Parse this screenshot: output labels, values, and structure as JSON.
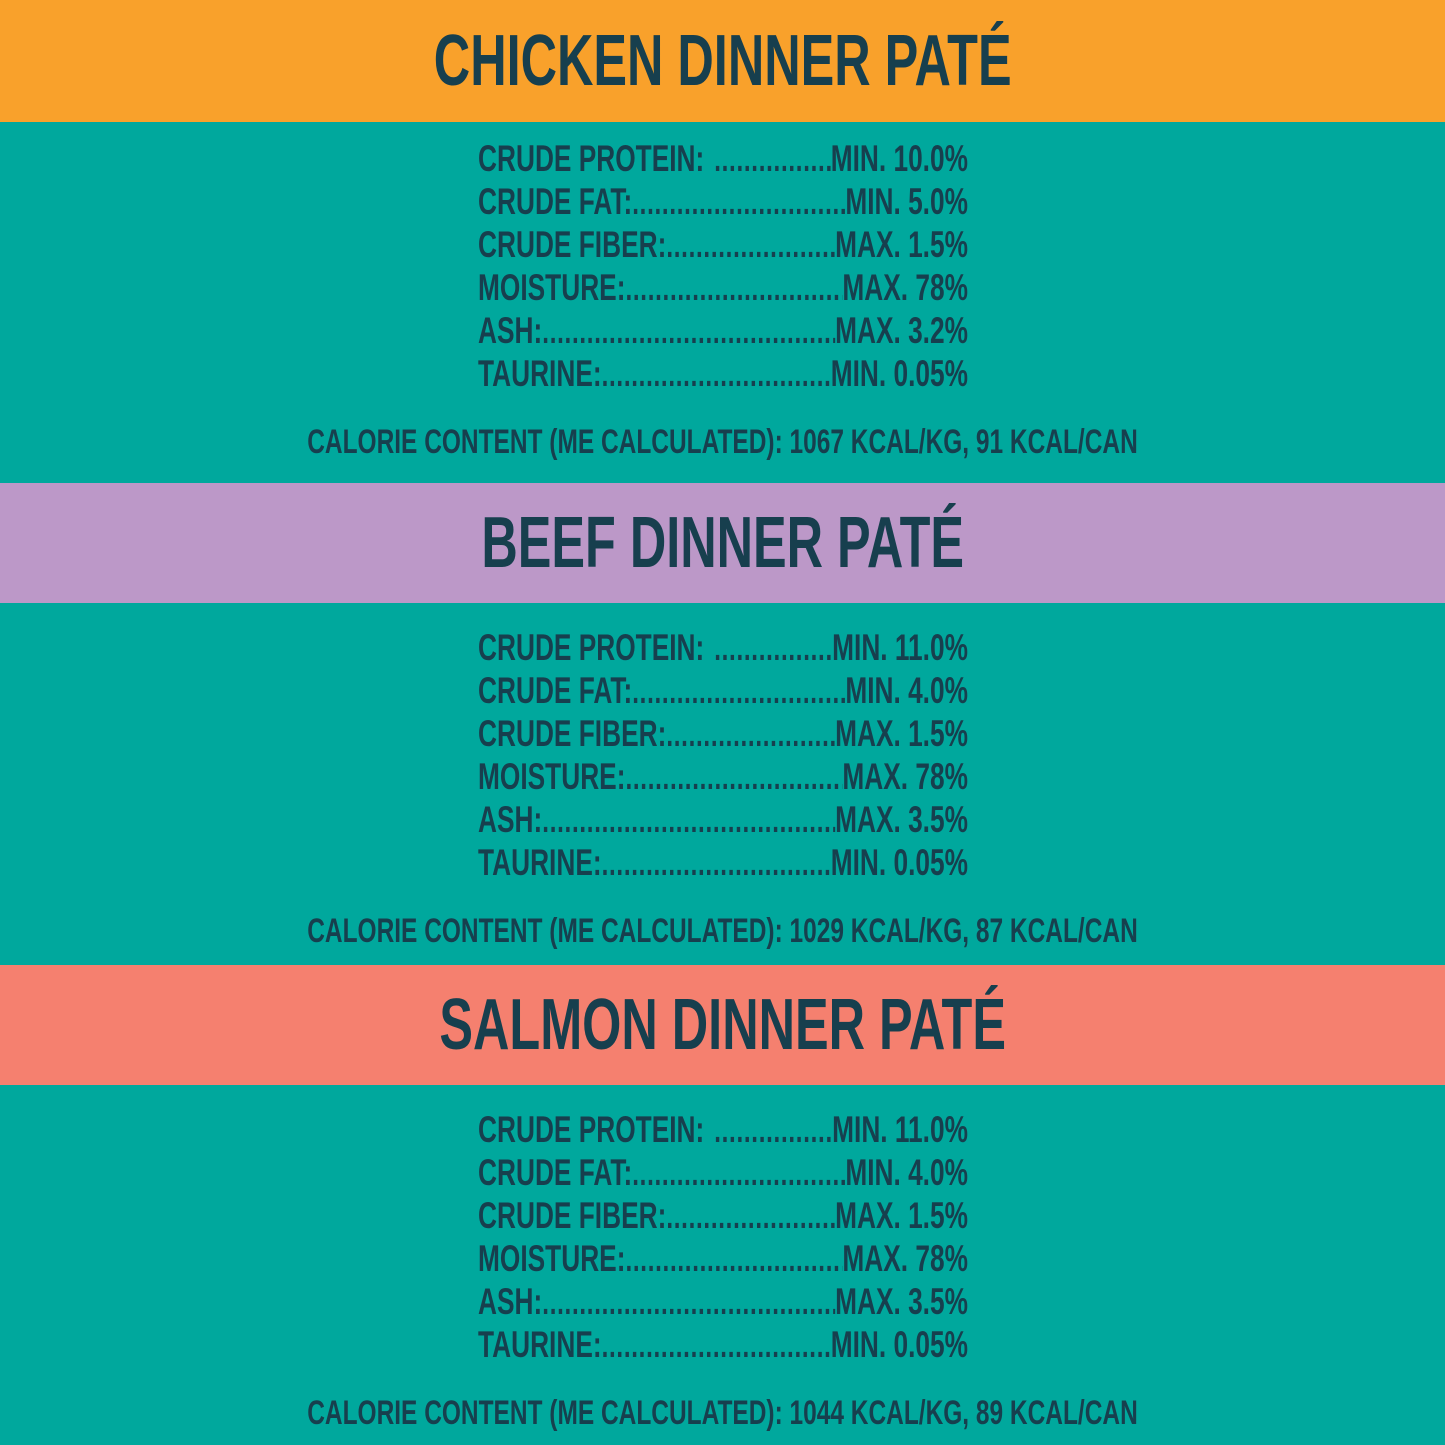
{
  "colors": {
    "background_teal": "#00A89D",
    "text_navy": "#173F4E",
    "chicken_band": "#F9A12B",
    "beef_band": "#BC98C8",
    "salmon_band": "#F5806F"
  },
  "sections": [
    {
      "title": "CHICKEN DINNER PATÉ",
      "header_color": "#F9A12B",
      "rows": [
        {
          "label": "CRUDE PROTEIN:",
          "value": "MIN. 10.0%"
        },
        {
          "label": "CRUDE FAT:",
          "value": "MIN. 5.0%"
        },
        {
          "label": "CRUDE FIBER:",
          "value": "MAX. 1.5%"
        },
        {
          "label": "MOISTURE:",
          "value": "MAX. 78%"
        },
        {
          "label": "ASH:",
          "value": "MAX. 3.2%"
        },
        {
          "label": "TAURINE:",
          "value": "MIN. 0.05%"
        }
      ],
      "calorie_line": "CALORIE CONTENT (ME CALCULATED): 1067 KCAL/KG, 91 KCAL/CAN"
    },
    {
      "title": "BEEF DINNER PATÉ",
      "header_color": "#BC98C8",
      "rows": [
        {
          "label": "CRUDE PROTEIN:",
          "value": "MIN. 11.0%"
        },
        {
          "label": "CRUDE FAT:",
          "value": "MIN. 4.0%"
        },
        {
          "label": "CRUDE FIBER:",
          "value": "MAX. 1.5%"
        },
        {
          "label": "MOISTURE:",
          "value": "MAX. 78%"
        },
        {
          "label": "ASH:",
          "value": "MAX. 3.5%"
        },
        {
          "label": "TAURINE:",
          "value": "MIN. 0.05%"
        }
      ],
      "calorie_line": "CALORIE CONTENT (ME CALCULATED): 1029 KCAL/KG, 87 KCAL/CAN"
    },
    {
      "title": "SALMON DINNER PATÉ",
      "header_color": "#F5806F",
      "rows": [
        {
          "label": "CRUDE PROTEIN:",
          "value": "MIN. 11.0%"
        },
        {
          "label": "CRUDE FAT:",
          "value": "MIN. 4.0%"
        },
        {
          "label": "CRUDE FIBER:",
          "value": "MAX. 1.5%"
        },
        {
          "label": "MOISTURE:",
          "value": "MAX. 78%"
        },
        {
          "label": "ASH:",
          "value": "MAX. 3.5%"
        },
        {
          "label": "TAURINE:",
          "value": "MIN. 0.05%"
        }
      ],
      "calorie_line": "CALORIE CONTENT (ME CALCULATED): 1044 KCAL/KG, 89 KCAL/CAN"
    }
  ]
}
